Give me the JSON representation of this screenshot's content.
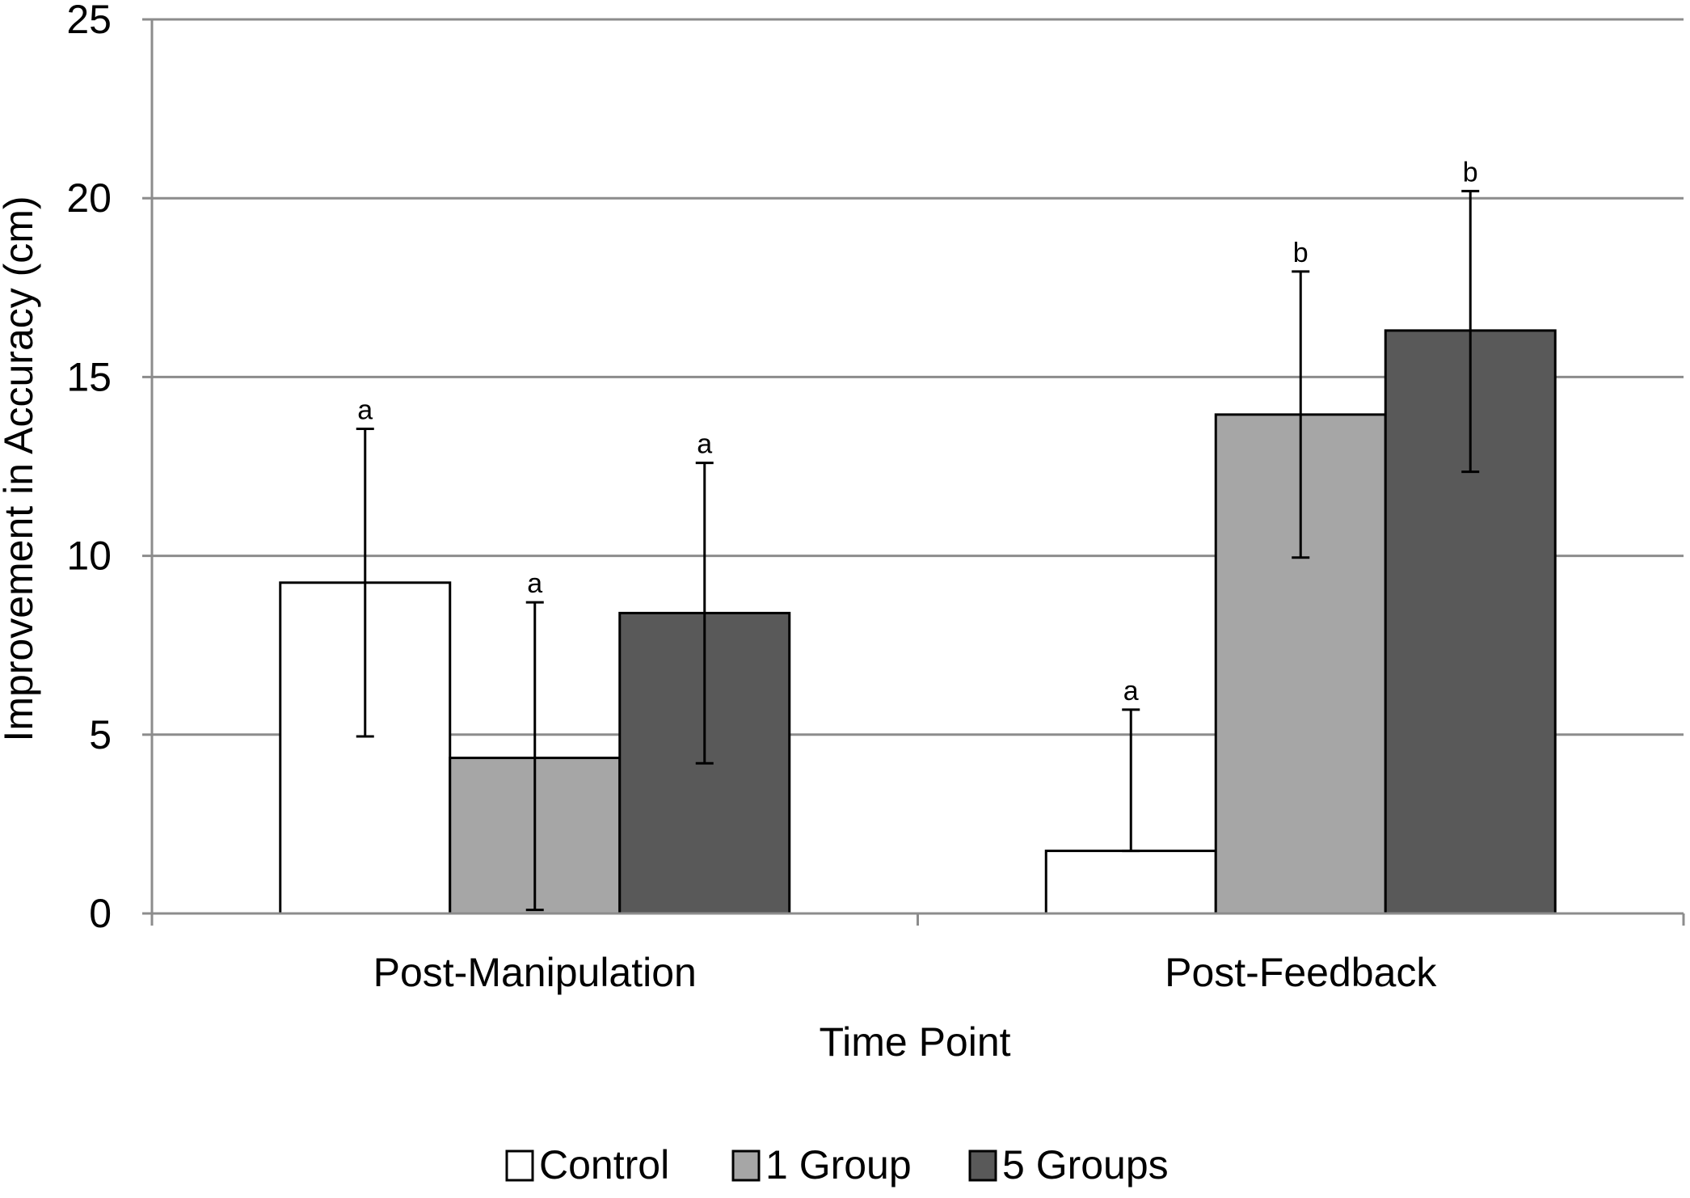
{
  "chart_data": {
    "type": "bar",
    "title": "",
    "xlabel": "Time Point",
    "ylabel": "Improvement in Accuracy (cm)",
    "ylim": [
      0,
      25
    ],
    "yticks": [
      0,
      5,
      10,
      15,
      20,
      25
    ],
    "grid": true,
    "legend_position": "bottom",
    "categories": [
      "Post-Manipulation",
      "Post-Feedback"
    ],
    "series": [
      {
        "name": "Control",
        "color": "#ffffff",
        "values": [
          9.25,
          1.75
        ],
        "error_low": [
          4.95,
          1.75
        ],
        "error_high": [
          13.55,
          5.7
        ],
        "labels": [
          "a",
          "a"
        ]
      },
      {
        "name": "1 Group",
        "color": "#a6a6a6",
        "values": [
          4.35,
          13.95
        ],
        "error_low": [
          0.1,
          9.95
        ],
        "error_high": [
          8.7,
          17.95
        ],
        "labels": [
          "a",
          "b"
        ]
      },
      {
        "name": "5 Groups",
        "color": "#595959",
        "values": [
          8.4,
          16.3
        ],
        "error_low": [
          4.2,
          12.35
        ],
        "error_high": [
          12.6,
          20.2
        ],
        "labels": [
          "a",
          "b"
        ]
      }
    ]
  }
}
